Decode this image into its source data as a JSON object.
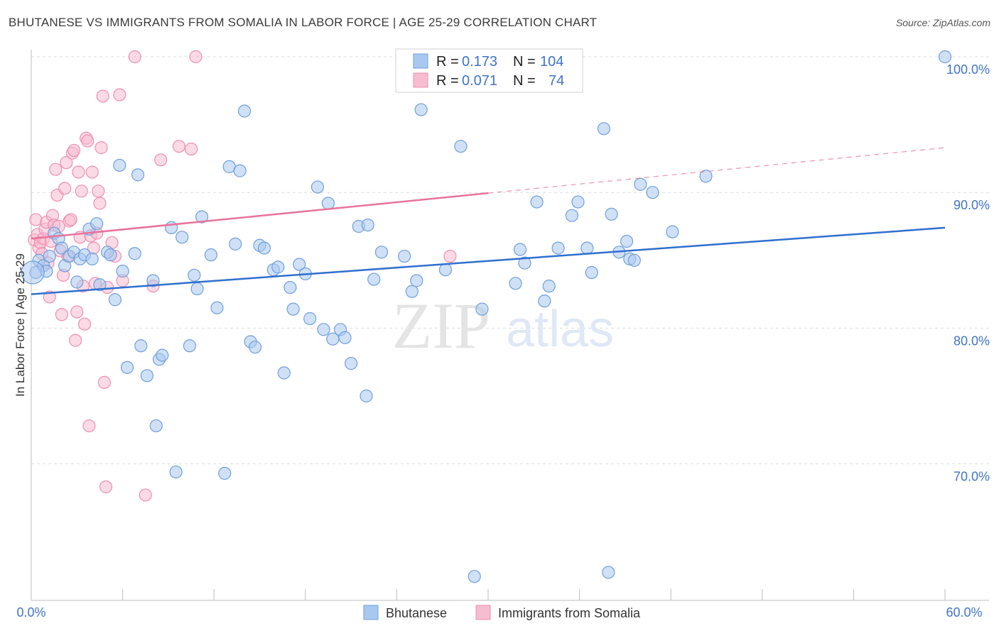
{
  "title": "BHUTANESE VS IMMIGRANTS FROM SOMALIA IN LABOR FORCE | AGE 25-29 CORRELATION CHART",
  "source": "Source: ZipAtlas.com",
  "watermark": {
    "zip": "ZIP",
    "atlas": "atlas"
  },
  "colors": {
    "blue_fill": "#a9c8ef",
    "blue_stroke": "#6f9fdc",
    "blue_line": "#2f6fcf",
    "pink_fill": "#f6bcd0",
    "pink_stroke": "#ee8fb0",
    "pink_line": "#e8739a",
    "grid": "#dddddd",
    "tick_text": "#3f74c9"
  },
  "legend": {
    "entries": [
      {
        "r_label": "R =",
        "r_value": "0.173",
        "n_label": "N =",
        "n_value": "104"
      },
      {
        "r_label": "R =",
        "r_value": "0.071",
        "n_label": "N =",
        "n_value": "74"
      }
    ]
  },
  "chart_data": {
    "type": "scatter",
    "title": "BHUTANESE VS IMMIGRANTS FROM SOMALIA IN LABOR FORCE | AGE 25-29 CORRELATION CHART",
    "xlabel": "",
    "ylabel": "In Labor Force | Age 25-29",
    "xlim": [
      0,
      60
    ],
    "ylim": [
      60,
      101
    ],
    "x_tick_labels": [
      "0.0%",
      "60.0%"
    ],
    "y_ticks": [
      70,
      80,
      90,
      100
    ],
    "y_tick_labels": [
      "70.0%",
      "80.0%",
      "90.0%",
      "100.0%"
    ],
    "legend_position": "bottom-center",
    "series": [
      {
        "name": "Bhutanese",
        "color": "#a9c8ef",
        "trend": {
          "x0": 0,
          "y0": 82.5,
          "x1": 60,
          "y1": 87.4,
          "dashed_from": null
        },
        "points": [
          [
            0.3,
            84.1
          ],
          [
            0.5,
            85.0
          ],
          [
            0.8,
            84.6
          ],
          [
            1.0,
            84.2
          ],
          [
            1.2,
            85.3
          ],
          [
            1.5,
            87.0
          ],
          [
            1.8,
            86.6
          ],
          [
            2.0,
            85.9
          ],
          [
            2.2,
            84.6
          ],
          [
            2.5,
            85.3
          ],
          [
            2.8,
            85.6
          ],
          [
            3.0,
            83.4
          ],
          [
            3.2,
            85.1
          ],
          [
            3.5,
            85.4
          ],
          [
            3.8,
            87.3
          ],
          [
            4.0,
            85.1
          ],
          [
            4.3,
            87.7
          ],
          [
            4.5,
            83.2
          ],
          [
            5.0,
            85.6
          ],
          [
            5.2,
            85.4
          ],
          [
            5.5,
            82.1
          ],
          [
            5.8,
            92.0
          ],
          [
            6.0,
            84.2
          ],
          [
            6.3,
            77.1
          ],
          [
            6.8,
            85.5
          ],
          [
            7.0,
            91.3
          ],
          [
            7.2,
            78.7
          ],
          [
            7.6,
            76.5
          ],
          [
            8.0,
            83.5
          ],
          [
            8.2,
            72.8
          ],
          [
            8.4,
            77.7
          ],
          [
            8.6,
            78.0
          ],
          [
            9.2,
            87.4
          ],
          [
            9.5,
            69.4
          ],
          [
            9.9,
            86.7
          ],
          [
            10.4,
            78.7
          ],
          [
            10.7,
            83.9
          ],
          [
            10.9,
            82.9
          ],
          [
            11.2,
            88.2
          ],
          [
            11.8,
            85.4
          ],
          [
            12.2,
            81.5
          ],
          [
            12.7,
            69.3
          ],
          [
            13.0,
            91.9
          ],
          [
            13.4,
            86.2
          ],
          [
            13.7,
            91.6
          ],
          [
            14.0,
            96.0
          ],
          [
            14.4,
            79.0
          ],
          [
            14.7,
            78.6
          ],
          [
            15.0,
            86.1
          ],
          [
            15.3,
            85.9
          ],
          [
            15.9,
            84.3
          ],
          [
            16.2,
            84.5
          ],
          [
            16.6,
            76.7
          ],
          [
            17.0,
            83.0
          ],
          [
            17.2,
            81.4
          ],
          [
            17.6,
            84.7
          ],
          [
            18.0,
            84.0
          ],
          [
            18.3,
            80.7
          ],
          [
            18.8,
            90.4
          ],
          [
            19.2,
            79.9
          ],
          [
            19.5,
            89.2
          ],
          [
            19.8,
            79.2
          ],
          [
            20.3,
            79.9
          ],
          [
            20.6,
            79.3
          ],
          [
            21.0,
            77.4
          ],
          [
            21.5,
            87.5
          ],
          [
            22.0,
            75.0
          ],
          [
            22.1,
            87.6
          ],
          [
            22.5,
            83.6
          ],
          [
            23.0,
            85.6
          ],
          [
            24.5,
            85.3
          ],
          [
            25.0,
            82.7
          ],
          [
            25.3,
            83.5
          ],
          [
            25.6,
            96.1
          ],
          [
            27.2,
            84.3
          ],
          [
            28.2,
            93.4
          ],
          [
            29.1,
            61.7
          ],
          [
            29.6,
            81.4
          ],
          [
            31.8,
            83.3
          ],
          [
            32.1,
            85.8
          ],
          [
            32.4,
            84.8
          ],
          [
            33.2,
            89.3
          ],
          [
            33.7,
            82.0
          ],
          [
            34.0,
            83.1
          ],
          [
            34.6,
            85.9
          ],
          [
            35.5,
            88.3
          ],
          [
            35.9,
            89.3
          ],
          [
            36.5,
            85.9
          ],
          [
            36.8,
            84.1
          ],
          [
            37.6,
            94.7
          ],
          [
            37.9,
            62.0
          ],
          [
            38.1,
            88.4
          ],
          [
            38.6,
            85.6
          ],
          [
            39.1,
            86.4
          ],
          [
            39.3,
            85.1
          ],
          [
            39.6,
            85.0
          ],
          [
            40.0,
            90.6
          ],
          [
            40.8,
            90.0
          ],
          [
            42.1,
            87.1
          ],
          [
            44.3,
            91.2
          ],
          [
            60.0,
            100.0
          ]
        ]
      },
      {
        "name": "Immigrants from Somalia",
        "color": "#f6bcd0",
        "trend": {
          "x0": 0,
          "y0": 86.6,
          "x1": 60,
          "y1": 93.3,
          "dashed_from": 30
        },
        "points": [
          [
            0.2,
            86.5
          ],
          [
            0.3,
            88.0
          ],
          [
            0.4,
            86.9
          ],
          [
            0.5,
            85.9
          ],
          [
            0.6,
            86.3
          ],
          [
            0.7,
            85.5
          ],
          [
            0.8,
            86.6
          ],
          [
            0.9,
            87.3
          ],
          [
            1.0,
            87.8
          ],
          [
            1.1,
            84.8
          ],
          [
            1.2,
            82.3
          ],
          [
            1.3,
            86.4
          ],
          [
            1.4,
            88.3
          ],
          [
            1.5,
            87.6
          ],
          [
            1.6,
            91.7
          ],
          [
            1.7,
            89.8
          ],
          [
            1.8,
            87.5
          ],
          [
            1.9,
            85.7
          ],
          [
            2.0,
            81.0
          ],
          [
            2.1,
            83.9
          ],
          [
            2.2,
            90.3
          ],
          [
            2.3,
            92.2
          ],
          [
            2.4,
            85.3
          ],
          [
            2.5,
            87.9
          ],
          [
            2.6,
            88.0
          ],
          [
            2.7,
            92.9
          ],
          [
            2.8,
            93.1
          ],
          [
            2.9,
            79.1
          ],
          [
            3.0,
            81.2
          ],
          [
            3.1,
            91.5
          ],
          [
            3.2,
            86.7
          ],
          [
            3.3,
            90.1
          ],
          [
            3.4,
            83.1
          ],
          [
            3.5,
            80.3
          ],
          [
            3.6,
            94.0
          ],
          [
            3.7,
            93.8
          ],
          [
            3.8,
            72.8
          ],
          [
            3.9,
            86.8
          ],
          [
            4.0,
            91.5
          ],
          [
            4.1,
            85.9
          ],
          [
            4.2,
            83.3
          ],
          [
            4.3,
            87.0
          ],
          [
            4.4,
            90.1
          ],
          [
            4.5,
            89.2
          ],
          [
            4.6,
            93.3
          ],
          [
            4.7,
            97.1
          ],
          [
            4.8,
            76.0
          ],
          [
            4.9,
            68.3
          ],
          [
            5.0,
            83.0
          ],
          [
            5.3,
            86.3
          ],
          [
            5.5,
            85.3
          ],
          [
            5.8,
            97.2
          ],
          [
            6.0,
            83.5
          ],
          [
            6.8,
            100.0
          ],
          [
            7.5,
            67.7
          ],
          [
            8.0,
            83.1
          ],
          [
            8.5,
            92.4
          ],
          [
            9.7,
            93.4
          ],
          [
            10.5,
            93.2
          ],
          [
            10.8,
            100.0
          ],
          [
            27.5,
            85.3
          ]
        ]
      }
    ]
  },
  "axes": {
    "y_axis_title": "In Labor Force | Age 25-29"
  }
}
